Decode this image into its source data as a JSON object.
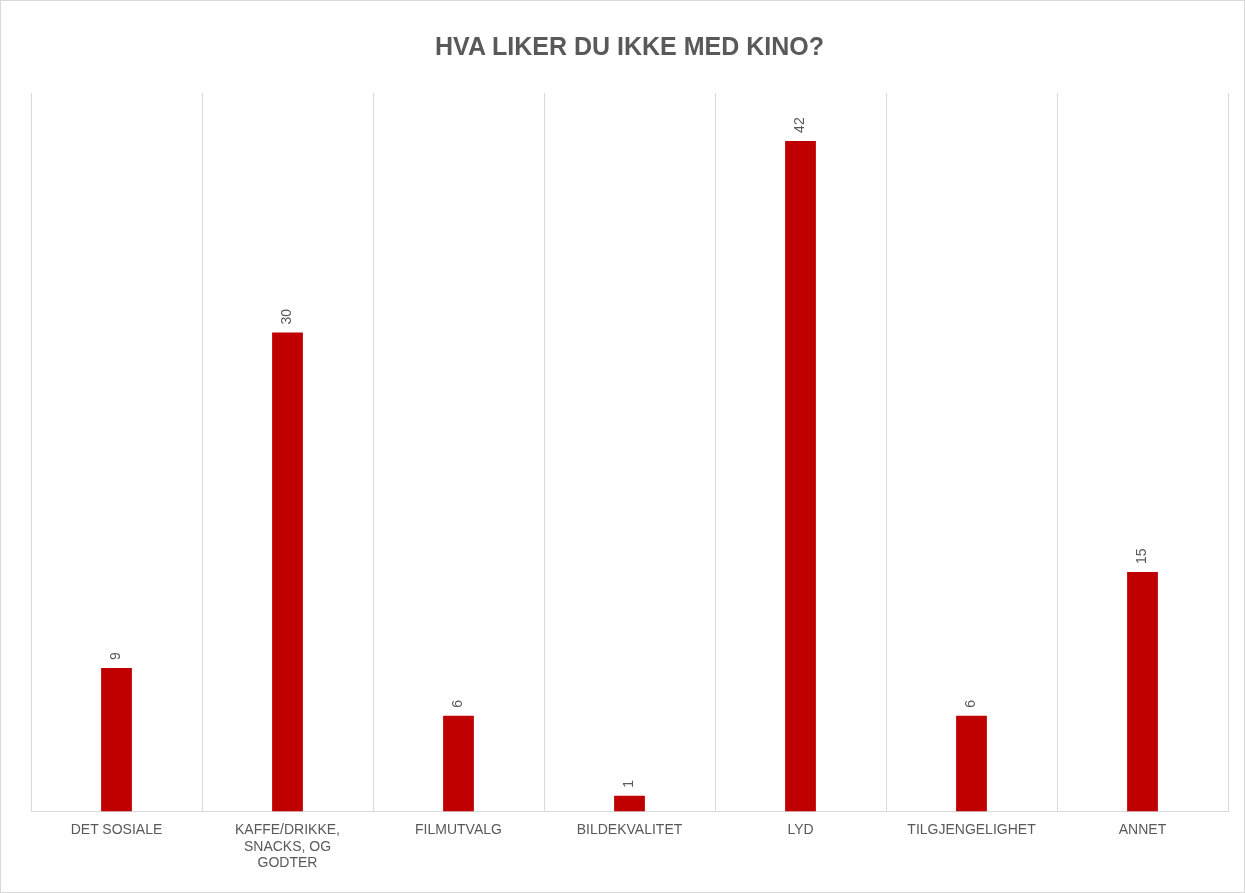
{
  "chart_data": {
    "type": "bar",
    "title": "HVA LIKER DU IKKE MED KINO?",
    "categories": [
      "DET SOSIALE",
      "KAFFE/DRIKKE, SNACKS, OG GODTER",
      "FILMUTVALG",
      "BILDEKVALITET",
      "LYD",
      "TILGJENGELIGHET",
      "ANNET"
    ],
    "values": [
      9,
      30,
      6,
      1,
      42,
      6,
      15
    ],
    "color": "#c00000",
    "data_labels": true,
    "grid": "x",
    "legend": false,
    "tick_labels": "x"
  }
}
